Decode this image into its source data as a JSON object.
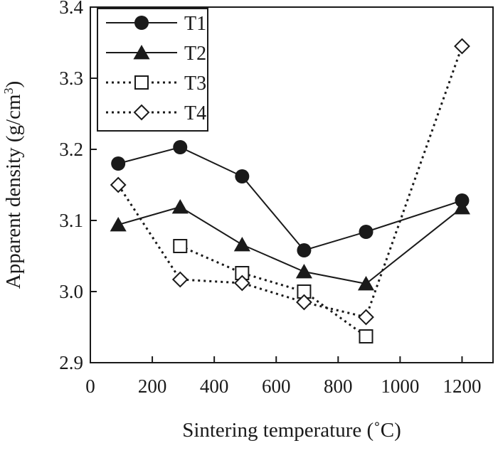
{
  "chart_data": {
    "type": "line",
    "title": "",
    "xlabel": "Sintering temperature (˚C)",
    "ylabel": "Apparent density (g/cm³)",
    "xlim": [
      0,
      1300
    ],
    "ylim": [
      2.9,
      3.4
    ],
    "xticks": [
      "0",
      "200",
      "400",
      "600",
      "800",
      "1000",
      "1200"
    ],
    "yticks": [
      "2.9",
      "3.0",
      "3.1",
      "3.2",
      "3.3",
      "3.4"
    ],
    "grid": false,
    "legend_position": "top-left",
    "series": [
      {
        "name": "T1",
        "marker": "filled-circle",
        "line": "solid",
        "x": [
          90,
          290,
          490,
          690,
          890,
          1200
        ],
        "y": [
          3.18,
          3.203,
          3.162,
          3.058,
          3.084,
          3.128
        ]
      },
      {
        "name": "T2",
        "marker": "filled-triangle",
        "line": "solid",
        "x": [
          90,
          290,
          490,
          690,
          890,
          1200
        ],
        "y": [
          3.094,
          3.119,
          3.066,
          3.028,
          3.011,
          3.118
        ]
      },
      {
        "name": "T3",
        "marker": "open-square",
        "line": "dotted",
        "x": [
          290,
          490,
          690,
          890
        ],
        "y": [
          3.064,
          3.026,
          3.0,
          2.937
        ]
      },
      {
        "name": "T4",
        "marker": "open-diamond",
        "line": "dotted",
        "x": [
          90,
          290,
          490,
          690,
          890,
          1200
        ],
        "y": [
          3.15,
          3.017,
          3.012,
          2.985,
          2.964,
          3.345
        ]
      }
    ],
    "colors": {
      "ink": "#1a1a1a",
      "background": "#ffffff"
    }
  }
}
